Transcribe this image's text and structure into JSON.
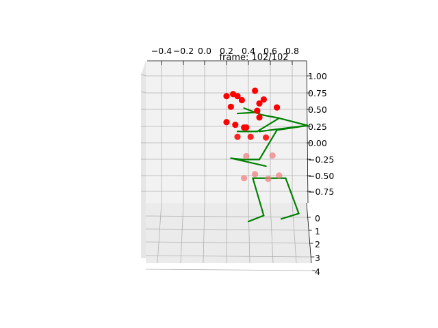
{
  "chart_data": {
    "type": "scatter",
    "title": "frame: 102/102",
    "projection": "3d",
    "grid": true,
    "axes": {
      "x": {
        "ticks": [
          "−0.4",
          "−0.2",
          "0.0",
          "0.2",
          "0.4",
          "0.6",
          "0.8"
        ],
        "label": ""
      },
      "y": {
        "ticks": [
          "1.00",
          "0.75",
          "0.50",
          "0.25",
          "0.00",
          "−0.25",
          "−0.50",
          "−0.75"
        ],
        "label": ""
      },
      "z": {
        "ticks": [
          "0",
          "1",
          "2",
          "3",
          "4"
        ],
        "label": ""
      }
    },
    "colors": {
      "markers_near": "#ff0000",
      "markers_far": "#f08080",
      "skeleton": "#008000",
      "pane": "#f2f2f2",
      "grid": "#b0b0b0"
    },
    "marker_points": [
      [
        0.23,
        0.78,
        0
      ],
      [
        0.13,
        0.73,
        0
      ],
      [
        0.1,
        0.7,
        0
      ],
      [
        0.15,
        0.7,
        0
      ],
      [
        0.27,
        0.65,
        0
      ],
      [
        0.17,
        0.64,
        0
      ],
      [
        0.25,
        0.59,
        0
      ],
      [
        0.12,
        0.54,
        0
      ],
      [
        0.33,
        0.53,
        0
      ],
      [
        0.24,
        0.48,
        0
      ],
      [
        0.25,
        0.38,
        0
      ],
      [
        0.1,
        0.31,
        0
      ],
      [
        0.14,
        0.27,
        0
      ],
      [
        0.19,
        0.23,
        0
      ],
      [
        0.18,
        0.23,
        0
      ],
      [
        0.15,
        0.09,
        0.5
      ],
      [
        0.21,
        0.09,
        0.5
      ],
      [
        0.28,
        0.08,
        0.5
      ],
      [
        0.19,
        -0.2,
        1
      ],
      [
        0.31,
        -0.19,
        1
      ],
      [
        0.23,
        -0.47,
        1.2
      ],
      [
        0.34,
        -0.49,
        1.2
      ],
      [
        0.18,
        -0.53,
        1.2
      ],
      [
        0.29,
        -0.54,
        1.2
      ]
    ],
    "skeleton_segments": [
      [
        [
          0.18,
          0.52
        ],
        [
          0.26,
          0.42
        ]
      ],
      [
        [
          0.26,
          0.42
        ],
        [
          0.34,
          0.37
        ]
      ],
      [
        [
          0.34,
          0.37
        ],
        [
          0.47,
          0.26
        ]
      ],
      [
        [
          0.47,
          0.26
        ],
        [
          0.25,
          0.17
        ]
      ],
      [
        [
          0.34,
          0.37
        ],
        [
          0.24,
          0.17
        ]
      ],
      [
        [
          0.24,
          0.17
        ],
        [
          0.15,
          0.17
        ]
      ],
      [
        [
          0.15,
          0.44
        ],
        [
          0.25,
          0.46
        ]
      ],
      [
        [
          0.47,
          0.26
        ],
        [
          0.33,
          0.19
        ]
      ],
      [
        [
          0.33,
          0.19
        ],
        [
          0.25,
          -0.25
        ]
      ],
      [
        [
          0.25,
          -0.25
        ],
        [
          0.17,
          -0.25
        ]
      ],
      [
        [
          0.17,
          -0.25
        ],
        [
          0.12,
          -0.23
        ]
      ],
      [
        [
          0.12,
          -0.23
        ],
        [
          0.28,
          -0.35
        ]
      ],
      [
        [
          0.22,
          -0.53
        ],
        [
          0.37,
          -0.53
        ]
      ],
      [
        [
          0.22,
          -0.53
        ],
        [
          0.27,
          -1.09
        ]
      ],
      [
        [
          0.27,
          -1.09
        ],
        [
          0.2,
          -1.18
        ]
      ],
      [
        [
          0.37,
          -0.53
        ],
        [
          0.43,
          -1.06
        ]
      ],
      [
        [
          0.43,
          -1.06
        ],
        [
          0.35,
          -1.14
        ]
      ]
    ]
  }
}
